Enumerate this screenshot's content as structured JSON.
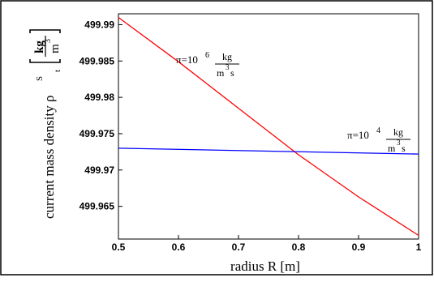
{
  "chart_data": {
    "type": "line",
    "xlabel": "radius R [m]",
    "ylabel": {
      "prefix": "current mass density ",
      "symbol": "ρ",
      "superscript": "S",
      "subscript": "t",
      "unit_numerator": "kg",
      "unit_denominator": "m",
      "unit_exponent": "3"
    },
    "xlim": [
      0.5,
      1.0
    ],
    "ylim": [
      499.9605,
      499.9915
    ],
    "x_ticks": [
      {
        "value": 0.5,
        "label": "0.5"
      },
      {
        "value": 0.6,
        "label": "0.6"
      },
      {
        "value": 0.7,
        "label": "0.7"
      },
      {
        "value": 0.8,
        "label": "0.8"
      },
      {
        "value": 0.9,
        "label": "0.9"
      },
      {
        "value": 1.0,
        "label": "1"
      }
    ],
    "y_ticks": [
      {
        "value": 499.965,
        "label": "499.965"
      },
      {
        "value": 499.97,
        "label": "499.97"
      },
      {
        "value": 499.975,
        "label": "499.975"
      },
      {
        "value": 499.98,
        "label": "499.98"
      },
      {
        "value": 499.985,
        "label": "499.985"
      },
      {
        "value": 499.99,
        "label": "499.99"
      }
    ],
    "grid": false,
    "series": [
      {
        "color": "#ff0000",
        "x": [
          0.5,
          0.6,
          0.7,
          0.8,
          0.9,
          1.0
        ],
        "y": [
          499.991,
          499.9849,
          499.9785,
          499.9721,
          499.9663,
          499.961
        ],
        "label": {
          "base": "π=10",
          "exponent": "6",
          "numerator": "kg",
          "denominator": "m",
          "denominator_exponent": "3",
          "denominator_suffix": "s"
        }
      },
      {
        "color": "#0000ff",
        "x": [
          0.5,
          1.0
        ],
        "y": [
          499.973,
          499.9722
        ],
        "label": {
          "base": "π=10",
          "exponent": "4",
          "numerator": "kg",
          "denominator": "m",
          "denominator_exponent": "3",
          "denominator_suffix": "s"
        }
      }
    ]
  }
}
